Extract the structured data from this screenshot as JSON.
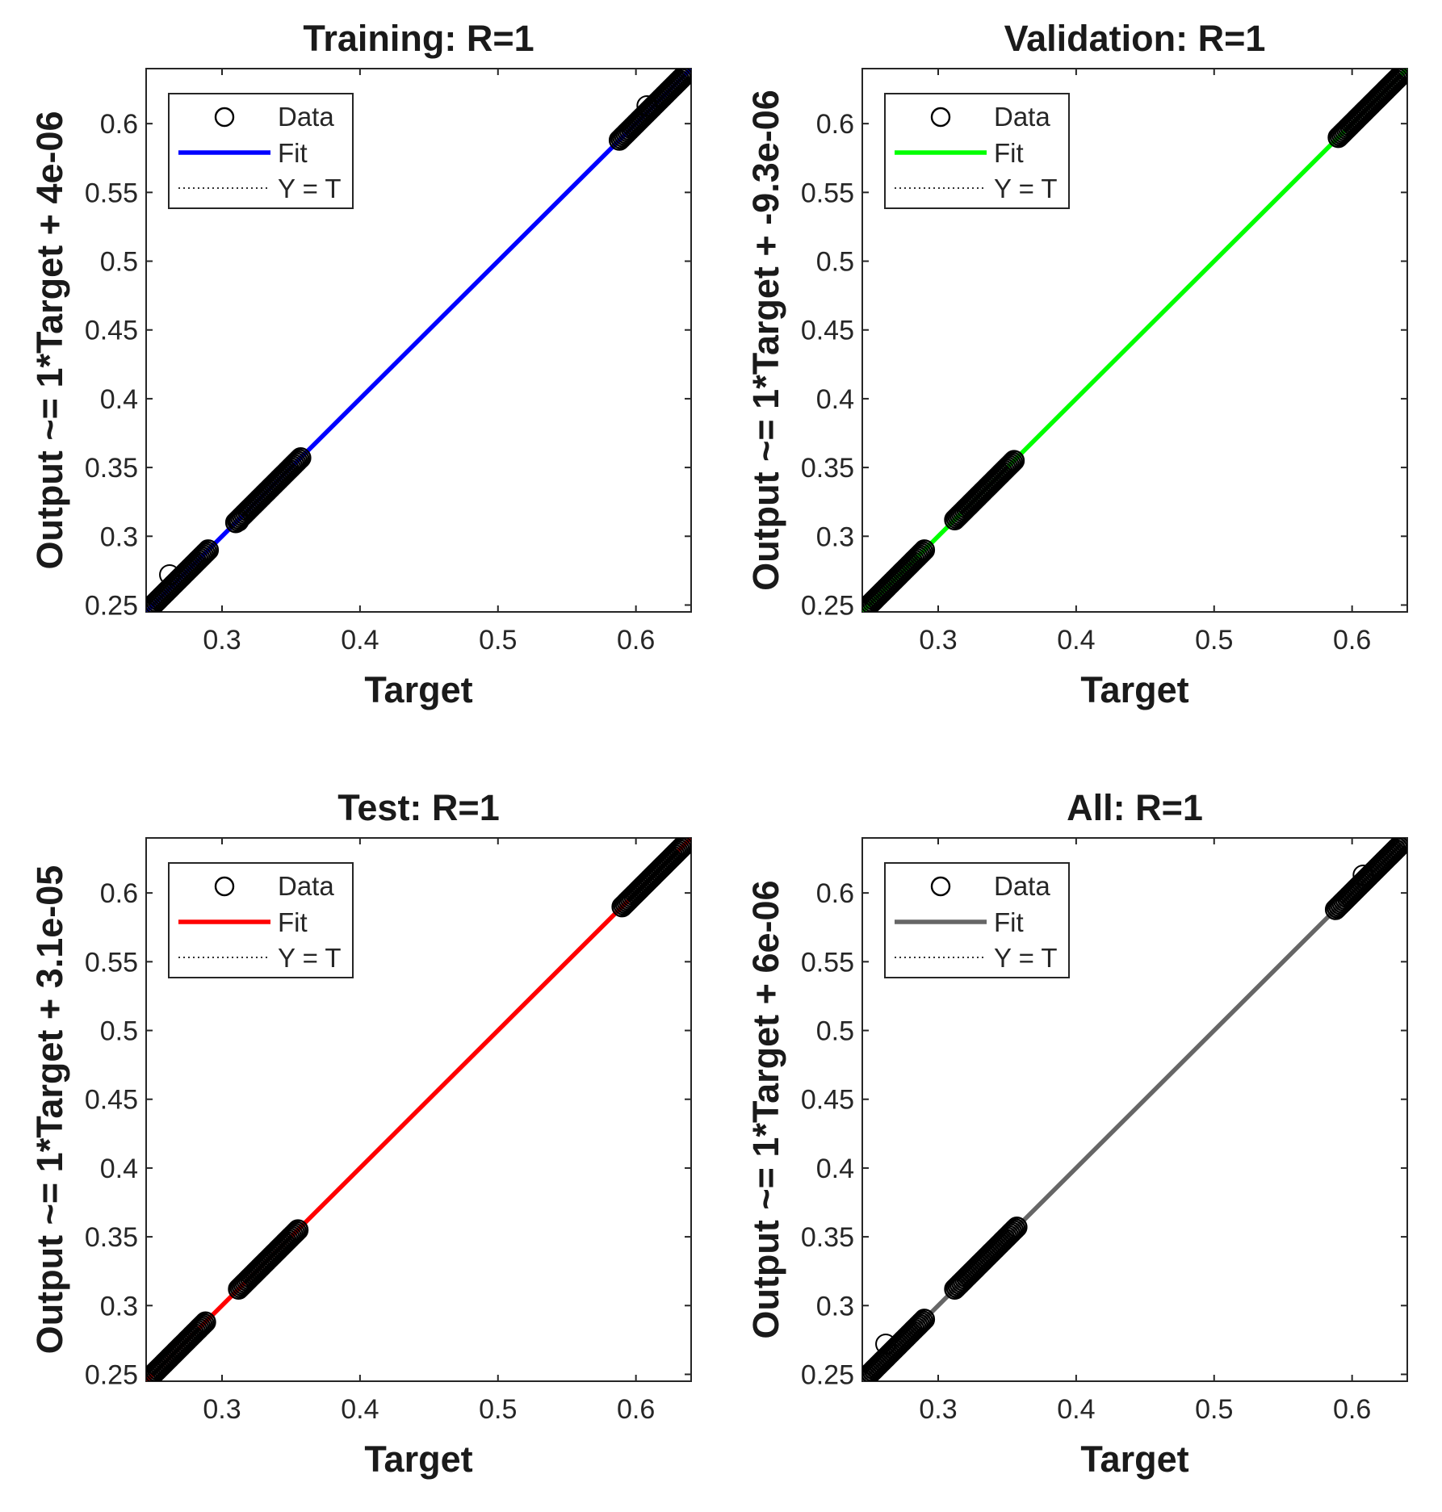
{
  "figure": {
    "background": "#ffffff"
  },
  "legend": {
    "data_label": "Data",
    "fit_label": "Fit",
    "yt_label": "Y = T"
  },
  "chart_data": [
    {
      "type": "scatter",
      "title": "Training: R=1",
      "xlabel": "Target",
      "ylabel": "Output ~= 1*Target + 4e-06",
      "xlim": [
        0.245,
        0.64
      ],
      "ylim": [
        0.245,
        0.64
      ],
      "xticks": [
        "0.3",
        "0.4",
        "0.5",
        "0.6"
      ],
      "yticks": [
        "0.25",
        "0.3",
        "0.35",
        "0.4",
        "0.45",
        "0.5",
        "0.55",
        "0.6"
      ],
      "fit": {
        "slope": 1,
        "intercept": 4e-06,
        "color": "#0000ff"
      },
      "data_clusters": [
        [
          0.245,
          0.29
        ],
        [
          0.31,
          0.357
        ],
        [
          0.588,
          0.64
        ]
      ],
      "outliers": [
        [
          0.262,
          0.272
        ],
        [
          0.312,
          0.311
        ],
        [
          0.608,
          0.613
        ]
      ],
      "legend_position": "top-left",
      "grid": false
    },
    {
      "type": "scatter",
      "title": "Validation: R=1",
      "xlabel": "Target",
      "ylabel": "Output ~= 1*Target + -9.3e-06",
      "xlim": [
        0.245,
        0.64
      ],
      "ylim": [
        0.245,
        0.64
      ],
      "xticks": [
        "0.3",
        "0.4",
        "0.5",
        "0.6"
      ],
      "yticks": [
        "0.25",
        "0.3",
        "0.35",
        "0.4",
        "0.45",
        "0.5",
        "0.55",
        "0.6"
      ],
      "fit": {
        "slope": 1,
        "intercept": -9.3e-06,
        "color": "#00ff00"
      },
      "data_clusters": [
        [
          0.245,
          0.29
        ],
        [
          0.312,
          0.355
        ],
        [
          0.59,
          0.64
        ]
      ],
      "outliers": [],
      "legend_position": "top-left",
      "grid": false
    },
    {
      "type": "scatter",
      "title": "Test: R=1",
      "xlabel": "Target",
      "ylabel": "Output ~= 1*Target + 3.1e-05",
      "xlim": [
        0.245,
        0.64
      ],
      "ylim": [
        0.245,
        0.64
      ],
      "xticks": [
        "0.3",
        "0.4",
        "0.5",
        "0.6"
      ],
      "yticks": [
        "0.25",
        "0.3",
        "0.35",
        "0.4",
        "0.45",
        "0.5",
        "0.55",
        "0.6"
      ],
      "fit": {
        "slope": 1,
        "intercept": 3.1e-05,
        "color": "#ff0000"
      },
      "data_clusters": [
        [
          0.245,
          0.288
        ],
        [
          0.312,
          0.355
        ],
        [
          0.59,
          0.635
        ]
      ],
      "outliers": [],
      "legend_position": "top-left",
      "grid": false
    },
    {
      "type": "scatter",
      "title": "All: R=1",
      "xlabel": "Target",
      "ylabel": "Output ~= 1*Target + 6e-06",
      "xlim": [
        0.245,
        0.64
      ],
      "ylim": [
        0.245,
        0.64
      ],
      "xticks": [
        "0.3",
        "0.4",
        "0.5",
        "0.6"
      ],
      "yticks": [
        "0.25",
        "0.3",
        "0.35",
        "0.4",
        "0.45",
        "0.5",
        "0.55",
        "0.6"
      ],
      "fit": {
        "slope": 1,
        "intercept": 6e-06,
        "color": "#666666"
      },
      "data_clusters": [
        [
          0.245,
          0.29
        ],
        [
          0.312,
          0.357
        ],
        [
          0.588,
          0.64
        ]
      ],
      "outliers": [
        [
          0.262,
          0.272
        ],
        [
          0.608,
          0.613
        ]
      ],
      "legend_position": "top-left",
      "grid": false
    }
  ]
}
